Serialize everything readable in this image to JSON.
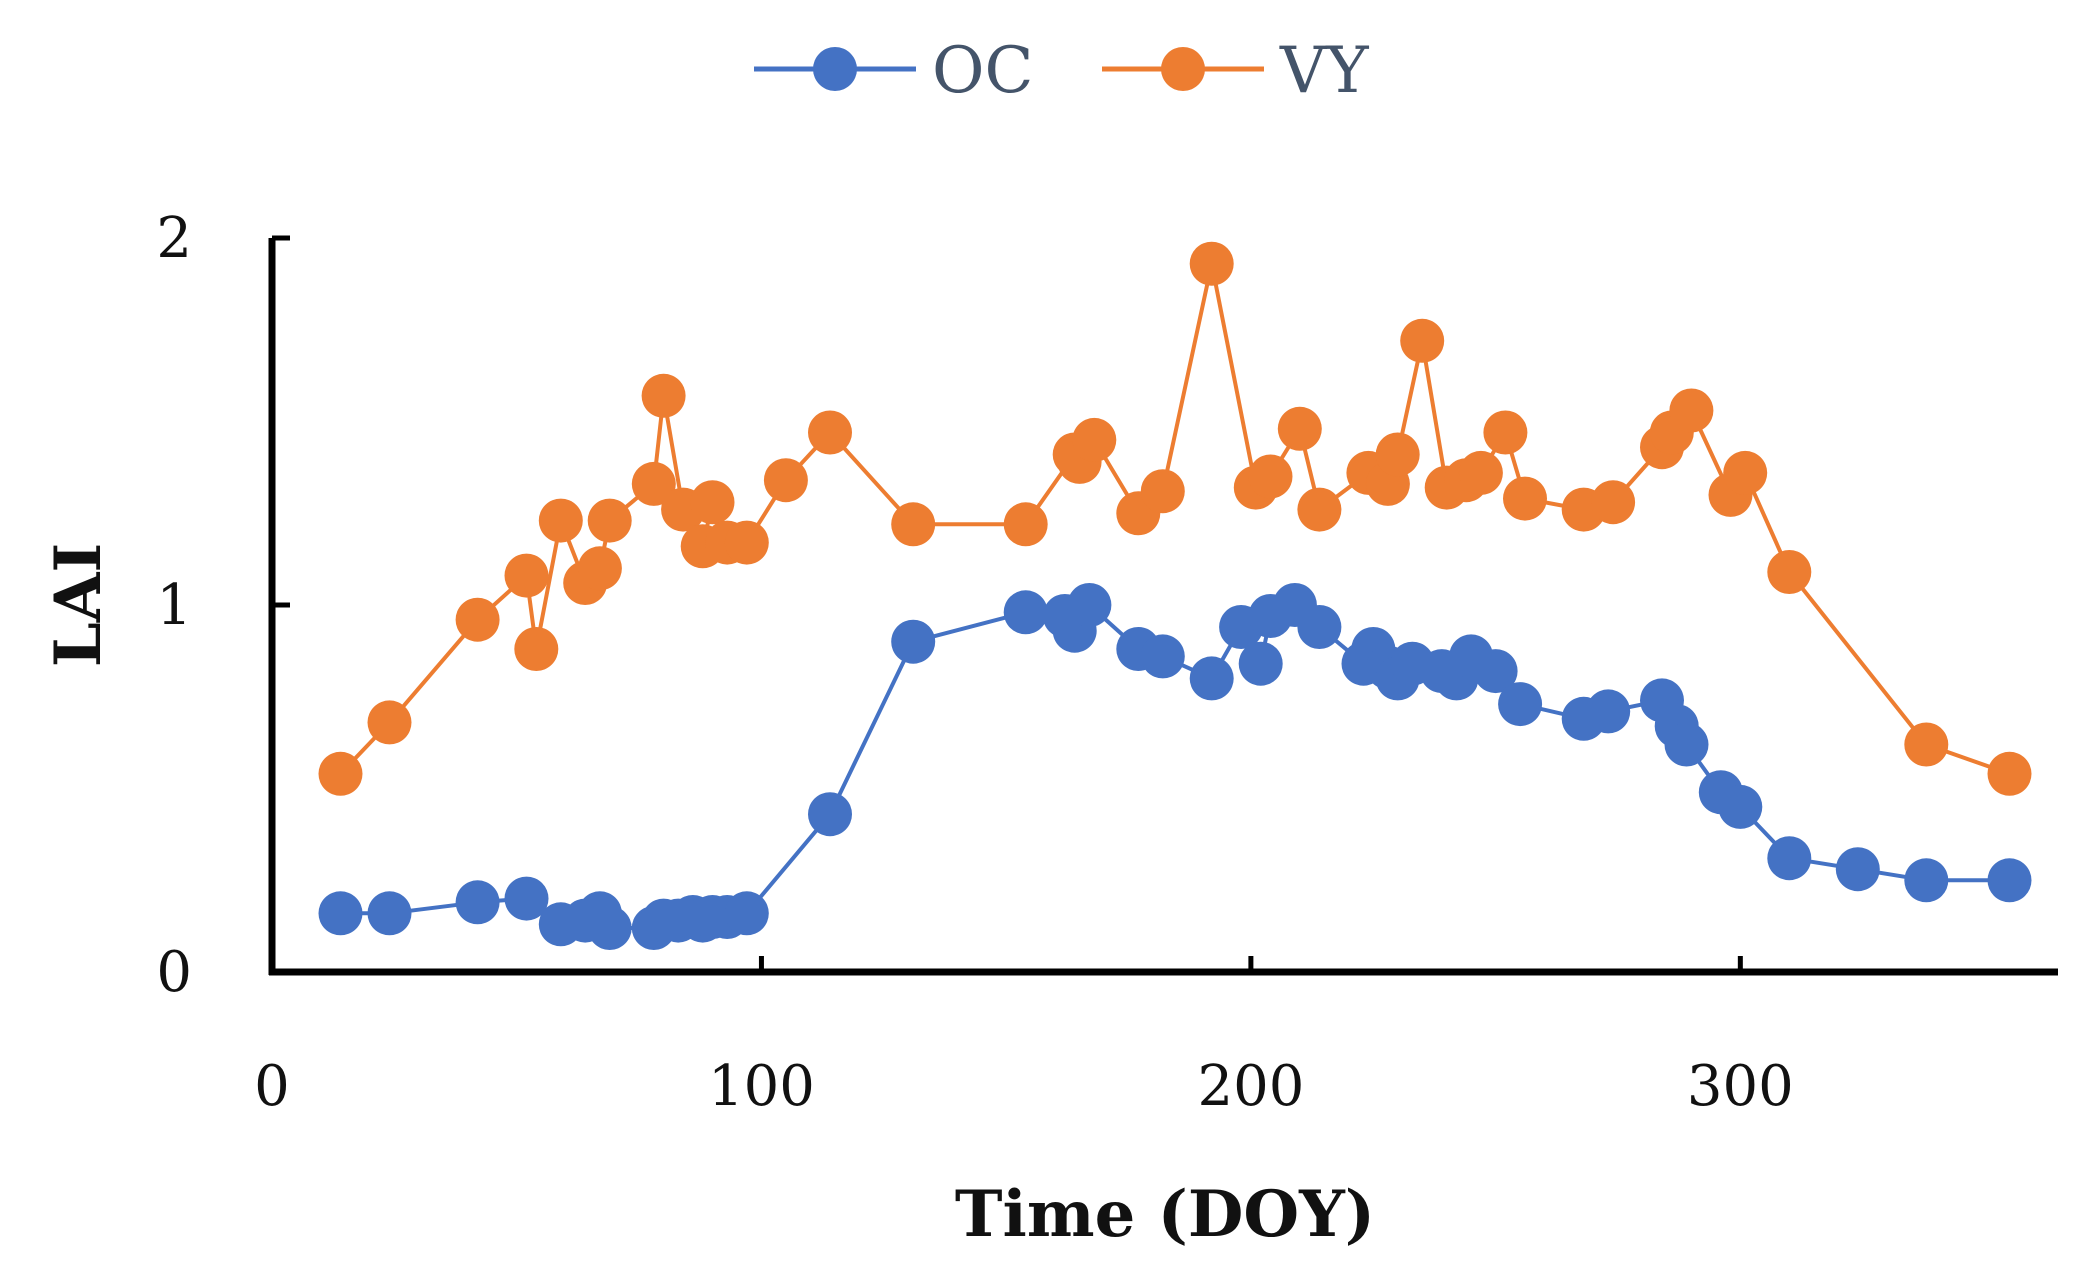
{
  "chart_data": {
    "type": "line",
    "title": "",
    "xlabel": "Time (DOY)",
    "ylabel": "LAI",
    "xlim": [
      0,
      360
    ],
    "ylim": [
      0,
      2
    ],
    "xticks": [
      0,
      100,
      200,
      300
    ],
    "yticks": [
      0,
      1,
      2
    ],
    "x_tick_labels": [
      "0",
      "100",
      "200",
      "300"
    ],
    "y_tick_labels": [
      "0",
      "1",
      "2"
    ],
    "grid": false,
    "legend_position": "top-center",
    "series": [
      {
        "name": "OC",
        "color": "#4472c4",
        "points": [
          [
            14,
            0.16
          ],
          [
            24,
            0.16
          ],
          [
            42,
            0.19
          ],
          [
            52,
            0.2
          ],
          [
            59,
            0.13
          ],
          [
            64,
            0.14
          ],
          [
            67,
            0.16
          ],
          [
            69,
            0.12
          ],
          [
            78,
            0.12
          ],
          [
            80,
            0.14
          ],
          [
            83,
            0.14
          ],
          [
            86,
            0.15
          ],
          [
            88,
            0.14
          ],
          [
            90,
            0.15
          ],
          [
            93,
            0.15
          ],
          [
            97,
            0.16
          ],
          [
            114,
            0.43
          ],
          [
            131,
            0.9
          ],
          [
            154,
            0.98
          ],
          [
            162,
            0.97
          ],
          [
            164,
            0.93
          ],
          [
            167,
            1.0
          ],
          [
            177,
            0.88
          ],
          [
            182,
            0.86
          ],
          [
            192,
            0.8
          ],
          [
            198,
            0.94
          ],
          [
            202,
            0.84
          ],
          [
            204,
            0.97
          ],
          [
            209,
            1.0
          ],
          [
            214,
            0.94
          ],
          [
            223,
            0.84
          ],
          [
            225,
            0.88
          ],
          [
            228,
            0.83
          ],
          [
            230,
            0.8
          ],
          [
            233,
            0.84
          ],
          [
            239,
            0.82
          ],
          [
            242,
            0.8
          ],
          [
            245,
            0.86
          ],
          [
            250,
            0.82
          ],
          [
            255,
            0.73
          ],
          [
            268,
            0.69
          ],
          [
            273,
            0.71
          ],
          [
            284,
            0.74
          ],
          [
            287,
            0.67
          ],
          [
            289,
            0.62
          ],
          [
            296,
            0.49
          ],
          [
            300,
            0.45
          ],
          [
            310,
            0.31
          ],
          [
            324,
            0.28
          ],
          [
            338,
            0.25
          ],
          [
            355,
            0.25
          ]
        ]
      },
      {
        "name": "VY",
        "color": "#ed7d31",
        "points": [
          [
            14,
            0.54
          ],
          [
            24,
            0.68
          ],
          [
            42,
            0.96
          ],
          [
            52,
            1.08
          ],
          [
            54,
            0.88
          ],
          [
            59,
            1.23
          ],
          [
            64,
            1.06
          ],
          [
            67,
            1.1
          ],
          [
            69,
            1.23
          ],
          [
            78,
            1.33
          ],
          [
            80,
            1.57
          ],
          [
            84,
            1.26
          ],
          [
            88,
            1.16
          ],
          [
            90,
            1.28
          ],
          [
            93,
            1.17
          ],
          [
            97,
            1.17
          ],
          [
            105,
            1.34
          ],
          [
            114,
            1.47
          ],
          [
            131,
            1.22
          ],
          [
            154,
            1.22
          ],
          [
            164,
            1.41
          ],
          [
            165,
            1.39
          ],
          [
            168,
            1.45
          ],
          [
            177,
            1.25
          ],
          [
            182,
            1.31
          ],
          [
            192,
            1.93
          ],
          [
            201,
            1.32
          ],
          [
            204,
            1.35
          ],
          [
            210,
            1.48
          ],
          [
            214,
            1.26
          ],
          [
            224,
            1.36
          ],
          [
            228,
            1.33
          ],
          [
            230,
            1.41
          ],
          [
            235,
            1.72
          ],
          [
            240,
            1.32
          ],
          [
            244,
            1.34
          ],
          [
            247,
            1.36
          ],
          [
            252,
            1.47
          ],
          [
            256,
            1.29
          ],
          [
            268,
            1.26
          ],
          [
            274,
            1.28
          ],
          [
            284,
            1.43
          ],
          [
            286,
            1.47
          ],
          [
            290,
            1.53
          ],
          [
            298,
            1.3
          ],
          [
            301,
            1.36
          ],
          [
            310,
            1.09
          ],
          [
            338,
            0.62
          ],
          [
            355,
            0.54
          ]
        ]
      }
    ]
  }
}
